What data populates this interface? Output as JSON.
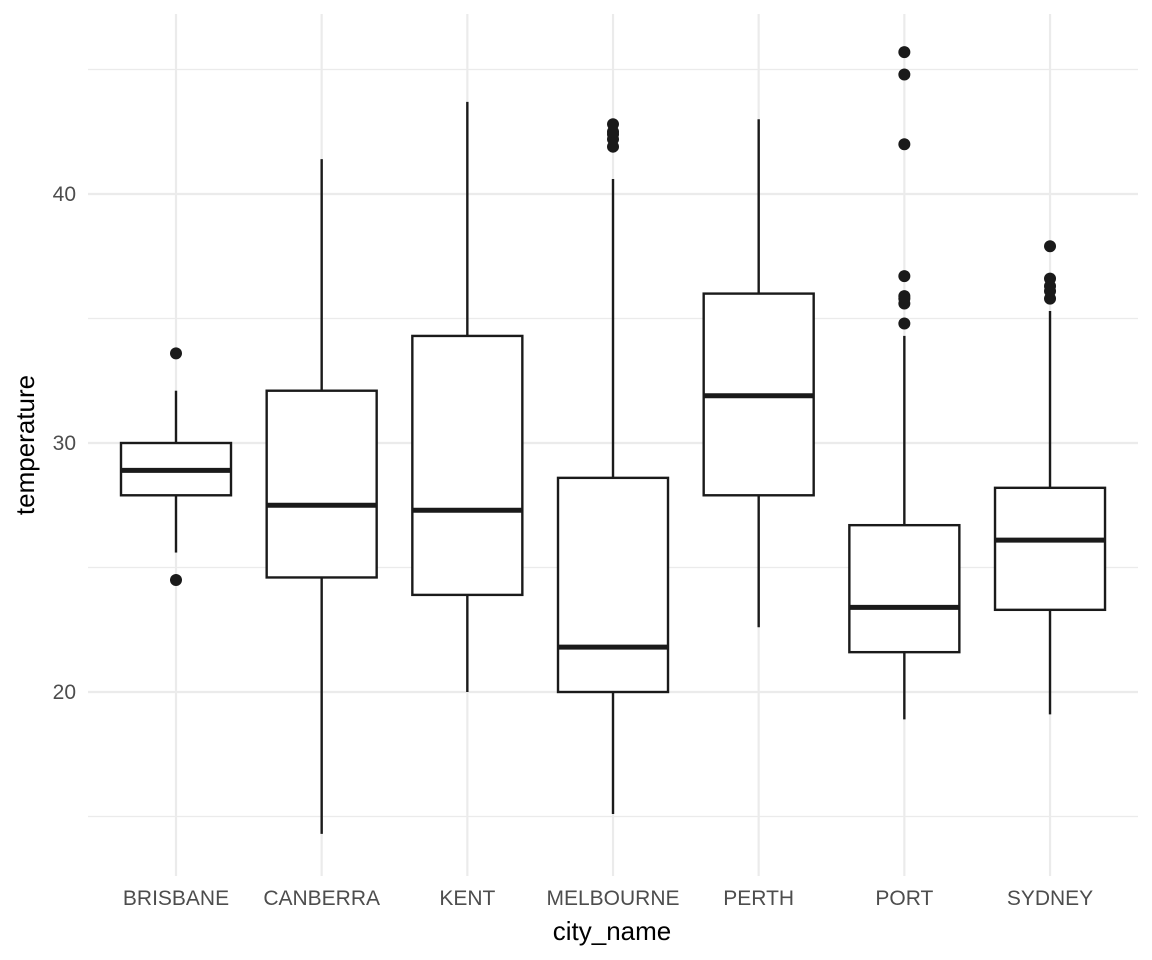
{
  "chart_data": {
    "type": "boxplot",
    "xlabel": "city_name",
    "ylabel": "temperature",
    "ylim": [
      14.0,
      46.0
    ],
    "y_major_ticks": [
      20,
      30,
      40
    ],
    "y_minor_gridlines": [
      15,
      25,
      35,
      45
    ],
    "grid": true,
    "categories": [
      "BRISBANE",
      "CANBERRA",
      "KENT",
      "MELBOURNE",
      "PERTH",
      "PORT",
      "SYDNEY"
    ],
    "boxes": [
      {
        "category": "BRISBANE",
        "whisker_low": 25.6,
        "q1": 27.9,
        "median": 28.9,
        "q3": 30.0,
        "whisker_high": 32.1,
        "outliers": [
          33.6,
          24.5
        ]
      },
      {
        "category": "CANBERRA",
        "whisker_low": 14.3,
        "q1": 24.6,
        "median": 27.5,
        "q3": 32.1,
        "whisker_high": 41.4,
        "outliers": []
      },
      {
        "category": "KENT",
        "whisker_low": 20.0,
        "q1": 23.9,
        "median": 27.3,
        "q3": 34.3,
        "whisker_high": 43.7,
        "outliers": []
      },
      {
        "category": "MELBOURNE",
        "whisker_low": 15.1,
        "q1": 20.0,
        "median": 21.8,
        "q3": 28.6,
        "whisker_high": 40.6,
        "outliers": [
          41.9,
          42.2,
          42.4,
          42.5,
          42.8
        ]
      },
      {
        "category": "PERTH",
        "whisker_low": 22.6,
        "q1": 27.9,
        "median": 31.9,
        "q3": 36.0,
        "whisker_high": 43.0,
        "outliers": []
      },
      {
        "category": "PORT",
        "whisker_low": 18.9,
        "q1": 21.6,
        "median": 23.4,
        "q3": 26.7,
        "whisker_high": 34.3,
        "outliers": [
          34.8,
          35.6,
          35.8,
          35.9,
          36.7,
          42.0,
          44.8,
          45.7
        ]
      },
      {
        "category": "SYDNEY",
        "whisker_low": 19.1,
        "q1": 23.3,
        "median": 26.1,
        "q3": 28.2,
        "whisker_high": 35.3,
        "outliers": [
          35.8,
          36.1,
          36.3,
          36.6,
          37.9
        ]
      }
    ],
    "colors": {
      "box_stroke": "#1a1a1a",
      "box_fill": "#ffffff",
      "outlier": "#1a1a1a",
      "grid": "#ebebeb",
      "tick_text": "#4d4d4d",
      "axis_title": "#000000",
      "background": "#ffffff"
    }
  }
}
